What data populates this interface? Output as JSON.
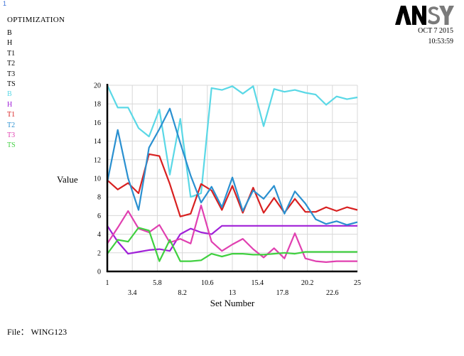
{
  "header": {
    "window_number": "1",
    "title": "OPTIMIZATION",
    "logo_text": "ANSYS",
    "date": "OCT  7  2015",
    "time": "10:53:59"
  },
  "legend_block": {
    "top_names": [
      "B",
      "H",
      "T1",
      "T2",
      "T3",
      "TS"
    ],
    "colored_names": [
      "B",
      "H",
      "T1",
      "T2",
      "T3",
      "TS"
    ]
  },
  "footer": {
    "file_label": "File： WING123"
  },
  "colors": {
    "B": "#5ad8e6",
    "H": "#a020d8",
    "T1": "#d82020",
    "T2": "#2a90d0",
    "T3": "#e040b0",
    "TS": "#40d040",
    "logo": "#000000",
    "logo_accent": "#000000"
  },
  "chart_data": {
    "type": "line",
    "title": "",
    "xlabel": "Set Number",
    "ylabel": "Value",
    "xlim": [
      1,
      25
    ],
    "ylim": [
      0,
      20
    ],
    "x_ticks_row1": [
      "1",
      "5.8",
      "10.6",
      "15.4",
      "20.2",
      "25"
    ],
    "x_ticks_row2": [
      "3.4",
      "8.2",
      "13",
      "17.8",
      "22.6"
    ],
    "y_ticks": [
      "0",
      "2",
      "4",
      "6",
      "8",
      "10",
      "12",
      "14",
      "16",
      "18",
      "20"
    ],
    "x": [
      1,
      2,
      3,
      4,
      5,
      6,
      7,
      8,
      9,
      10,
      11,
      12,
      13,
      14,
      15,
      16,
      17,
      18,
      19,
      20,
      21,
      22,
      23,
      24,
      25
    ],
    "series": [
      {
        "name": "B",
        "key": "B",
        "values": [
          20,
          17.6,
          17.6,
          15.4,
          14.5,
          17.4,
          10.4,
          16.4,
          8.0,
          8.4,
          19.7,
          19.5,
          19.9,
          19.1,
          19.9,
          15.6,
          19.6,
          19.3,
          19.5,
          19.2,
          19.0,
          17.9,
          18.8,
          18.5,
          18.7
        ]
      },
      {
        "name": "H",
        "key": "H",
        "values": [
          4.9,
          3.2,
          1.9,
          2.1,
          2.3,
          2.4,
          2.2,
          4.0,
          4.6,
          4.2,
          4.0,
          4.9,
          4.9,
          4.9,
          4.9,
          4.9,
          4.9,
          4.9,
          4.9,
          4.9,
          4.9,
          4.9,
          4.9,
          4.9,
          4.9
        ]
      },
      {
        "name": "T1",
        "key": "T1",
        "values": [
          9.8,
          8.8,
          9.5,
          8.4,
          12.6,
          12.4,
          9.4,
          5.9,
          6.2,
          9.4,
          8.7,
          6.6,
          9.2,
          6.3,
          9.0,
          6.3,
          7.9,
          6.3,
          7.8,
          6.4,
          6.4,
          6.9,
          6.5,
          6.9,
          6.6
        ]
      },
      {
        "name": "T2",
        "key": "T2",
        "values": [
          9.6,
          15.2,
          10.0,
          6.6,
          13.3,
          15.3,
          17.5,
          13.8,
          10.3,
          7.4,
          9.1,
          6.9,
          10.1,
          6.5,
          8.7,
          7.8,
          9.2,
          6.2,
          8.6,
          7.3,
          5.6,
          5.1,
          5.4,
          5.0,
          5.3
        ]
      },
      {
        "name": "T3",
        "key": "T3",
        "values": [
          3.0,
          4.7,
          6.5,
          4.6,
          4.2,
          5.0,
          3.1,
          3.5,
          3.0,
          7.1,
          3.2,
          2.2,
          2.9,
          3.5,
          2.4,
          1.5,
          2.5,
          1.4,
          4.1,
          1.4,
          1.1,
          1.0,
          1.1,
          1.1,
          1.1
        ]
      },
      {
        "name": "TS",
        "key": "TS",
        "values": [
          1.9,
          3.4,
          3.2,
          4.7,
          4.4,
          1.1,
          3.4,
          1.1,
          1.1,
          1.2,
          1.9,
          1.6,
          1.9,
          1.9,
          1.8,
          1.8,
          1.9,
          2.0,
          1.9,
          2.1,
          2.1,
          2.1,
          2.1,
          2.1,
          2.1
        ]
      }
    ]
  }
}
